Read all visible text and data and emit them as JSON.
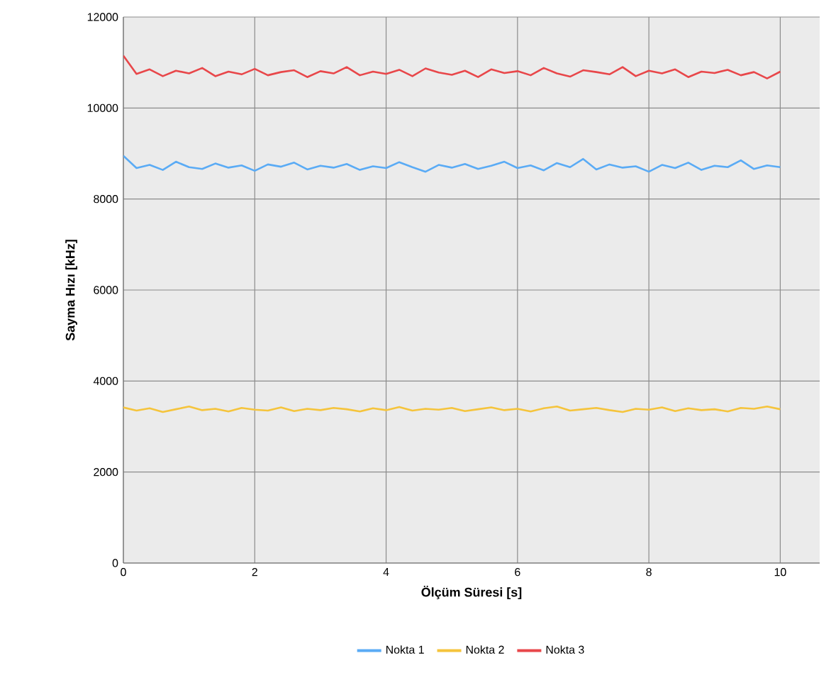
{
  "chart_data": {
    "type": "line",
    "xlabel": "Ölçüm Süresi [s]",
    "ylabel": "Sayma Hızı [kHz]",
    "x": [
      0,
      0.2,
      0.4,
      0.6,
      0.8,
      1,
      1.2,
      1.4,
      1.6,
      1.8,
      2,
      2.2,
      2.4,
      2.6,
      2.8,
      3,
      3.2,
      3.4,
      3.6,
      3.8,
      4,
      4.2,
      4.4,
      4.6,
      4.8,
      5,
      5.2,
      5.4,
      5.6,
      5.8,
      6,
      6.2,
      6.4,
      6.6,
      6.8,
      7,
      7.2,
      7.4,
      7.6,
      7.8,
      8,
      8.2,
      8.4,
      8.6,
      8.8,
      9,
      9.2,
      9.4,
      9.6,
      9.8,
      10
    ],
    "series": [
      {
        "name": "Nokta 1",
        "color": "#5aabf5",
        "values": [
          8950,
          8680,
          8750,
          8640,
          8820,
          8700,
          8660,
          8780,
          8690,
          8740,
          8620,
          8760,
          8710,
          8800,
          8650,
          8730,
          8690,
          8770,
          8640,
          8720,
          8680,
          8810,
          8700,
          8600,
          8750,
          8690,
          8770,
          8660,
          8730,
          8820,
          8680,
          8740,
          8630,
          8790,
          8700,
          8880,
          8650,
          8760,
          8690,
          8720,
          8600,
          8750,
          8680,
          8800,
          8640,
          8730,
          8700,
          8850,
          8660,
          8740,
          8700
        ]
      },
      {
        "name": "Nokta 2",
        "color": "#f5c43c",
        "values": [
          3420,
          3350,
          3400,
          3320,
          3380,
          3440,
          3360,
          3390,
          3330,
          3410,
          3370,
          3350,
          3420,
          3340,
          3390,
          3360,
          3410,
          3380,
          3330,
          3400,
          3360,
          3430,
          3350,
          3390,
          3370,
          3410,
          3340,
          3380,
          3420,
          3360,
          3390,
          3330,
          3400,
          3440,
          3350,
          3380,
          3410,
          3360,
          3320,
          3390,
          3370,
          3420,
          3340,
          3400,
          3360,
          3380,
          3330,
          3410,
          3390,
          3440,
          3380
        ]
      },
      {
        "name": "Nokta 3",
        "color": "#e8474a",
        "values": [
          11150,
          10750,
          10850,
          10700,
          10820,
          10760,
          10880,
          10700,
          10800,
          10740,
          10860,
          10720,
          10790,
          10830,
          10680,
          10810,
          10760,
          10900,
          10720,
          10800,
          10750,
          10840,
          10700,
          10870,
          10780,
          10730,
          10820,
          10680,
          10850,
          10770,
          10810,
          10720,
          10880,
          10760,
          10690,
          10830,
          10790,
          10740,
          10900,
          10700,
          10820,
          10760,
          10850,
          10680,
          10800,
          10770,
          10840,
          10720,
          10790,
          10650,
          10800
        ]
      }
    ],
    "xlim": [
      0,
      10.6
    ],
    "ylim": [
      0,
      12000
    ],
    "xticks": [
      0,
      2,
      4,
      6,
      8,
      10
    ],
    "yticks": [
      0,
      2000,
      4000,
      6000,
      8000,
      10000,
      12000
    ],
    "grid": true,
    "legend": "bottom"
  }
}
